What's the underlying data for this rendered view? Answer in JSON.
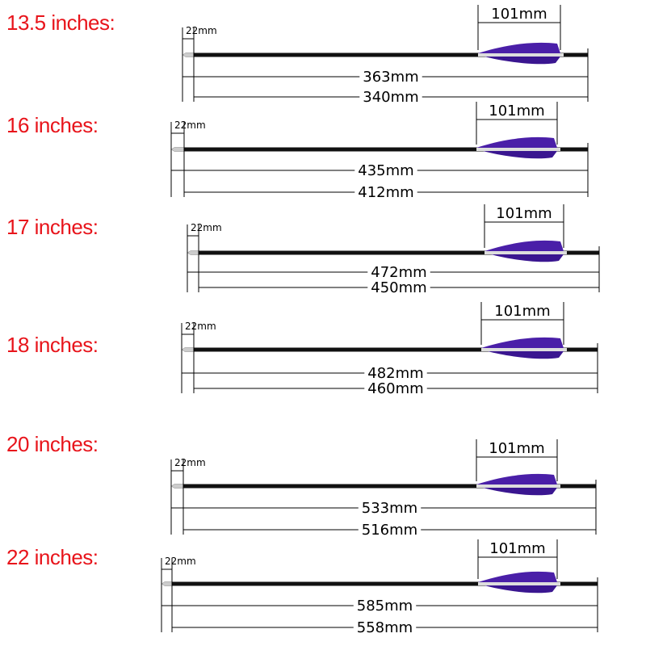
{
  "rows": [
    {
      "label": "13.5 inches:",
      "tip": "22mm",
      "fletch": "101mm",
      "total": "363mm",
      "shaft": "340mm"
    },
    {
      "label": "16 inches:",
      "tip": "22mm",
      "fletch": "101mm",
      "total": "435mm",
      "shaft": "412mm"
    },
    {
      "label": "17 inches:",
      "tip": "22mm",
      "fletch": "101mm",
      "total": "472mm",
      "shaft": "450mm"
    },
    {
      "label": "18 inches:",
      "tip": "22mm",
      "fletch": "101mm",
      "total": "482mm",
      "shaft": "460mm"
    },
    {
      "label": "20 inches:",
      "tip": "22mm",
      "fletch": "101mm",
      "total": "533mm",
      "shaft": "516mm"
    },
    {
      "label": "22 inches:",
      "tip": "22mm",
      "fletch": "101mm",
      "total": "585mm",
      "shaft": "558mm"
    }
  ]
}
